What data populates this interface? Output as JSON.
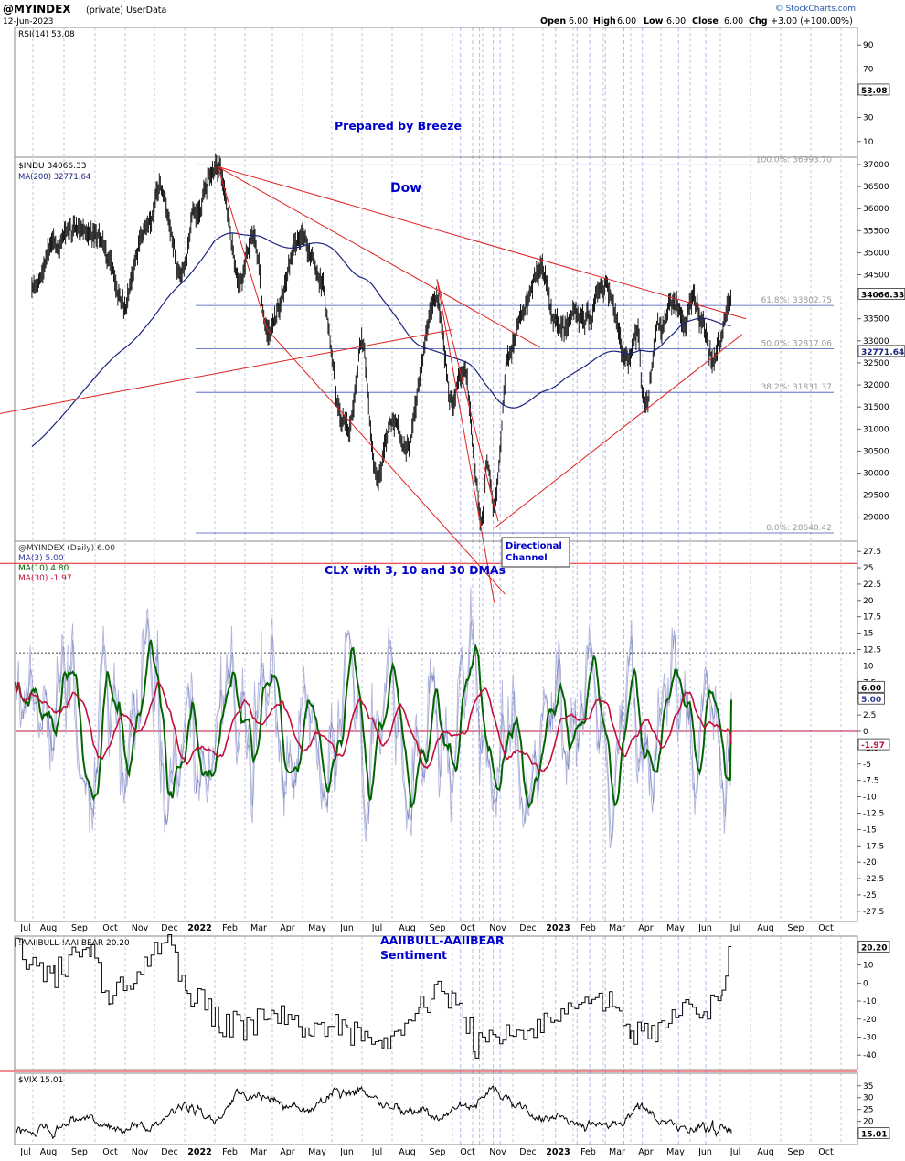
{
  "header": {
    "symbol": "@MYINDEX",
    "privacy": "(private)",
    "source": "UserData",
    "date": "12-Jun-2023",
    "quote": {
      "open_label": "Open",
      "open": "6.00",
      "high_label": "High",
      "high": "6.00",
      "low_label": "Low",
      "low": "6.00",
      "close_label": "Close",
      "close": "6.00",
      "chg_label": "Chg",
      "chg": "+3.00 (+100.00%)"
    },
    "brand": "© StockCharts.com",
    "brand_color": "#2255aa"
  },
  "colors": {
    "blue_text": "#0000cc",
    "price": "#000000",
    "ma200": "#1a237e",
    "trend": "#e02020",
    "fib": "#2233aa",
    "ma3": "#2d3a9a",
    "ma10": "#006400",
    "ma30": "#c0103a",
    "raw": "#b0b4dc",
    "month_line": "#b8b8d8",
    "event_line": "#6a6ad8"
  },
  "annotations": {
    "prepared": "Prepared by Breeze",
    "dow": "Dow",
    "clx": "CLX with 3, 10 and 30 DMAs",
    "channel_box": [
      "Directional",
      "Channel"
    ],
    "sentiment": [
      "AAIIBULL-AAIIBEAR",
      "Sentiment"
    ]
  },
  "x_axis": {
    "labels": [
      "Jul",
      "Aug",
      "Sep",
      "Oct",
      "Nov",
      "Dec",
      "2022",
      "Feb",
      "Mar",
      "Apr",
      "May",
      "Jun",
      "Jul",
      "Aug",
      "Sep",
      "Oct",
      "Nov",
      "Dec",
      "2023",
      "Feb",
      "Mar",
      "Apr",
      "May",
      "Jun",
      "Jul",
      "Aug",
      "Sep",
      "Oct"
    ],
    "bold": [
      "2022",
      "2023"
    ]
  },
  "chart_data": [
    {
      "type": "line",
      "name": "rsi",
      "legend": [
        "RSI(14) 53.08"
      ],
      "ticks": [
        90,
        70,
        50,
        30,
        10
      ],
      "ylim": [
        0,
        100
      ],
      "last_value_tag": "53.08",
      "last_value": 53.08
    },
    {
      "type": "line",
      "name": "dow",
      "legend": [
        "$INDU 34066.33",
        "MA(200) 32771.64"
      ],
      "ticks": [
        37000,
        36500,
        36000,
        35500,
        35000,
        34500,
        34000,
        33500,
        33000,
        32500,
        32000,
        31500,
        31000,
        30500,
        30000,
        29500,
        29000
      ],
      "ylim": [
        28620,
        37000
      ],
      "last_value_tags": [
        "34066.33",
        "32771.64"
      ],
      "fib_levels": [
        {
          "label": "100.0%: 36993.70",
          "value": 36993.7
        },
        {
          "label": "61.8%: 33802.75",
          "value": 33802.75
        },
        {
          "label": "50.0%: 32817.06",
          "value": 32817.06
        },
        {
          "label": "38.2%: 31831.37",
          "value": 31831.37
        },
        {
          "label": "0.0%: 28640.42",
          "value": 28640.42
        }
      ],
      "price_x": [
        "2021-06-29",
        "2021-07-20",
        "2021-08-16",
        "2021-09-03",
        "2021-09-30",
        "2021-10-25",
        "2021-11-05",
        "2021-11-30",
        "2021-12-10",
        "2022-01-04",
        "2022-01-27",
        "2022-02-09",
        "2022-02-24",
        "2022-03-29",
        "2022-04-20",
        "2022-05-12",
        "2022-05-18",
        "2022-06-01",
        "2022-06-16",
        "2022-06-28",
        "2022-07-14",
        "2022-08-16",
        "2022-08-31",
        "2022-09-12",
        "2022-09-30",
        "2022-10-06",
        "2022-10-13",
        "2022-10-28",
        "2022-11-10",
        "2022-12-01",
        "2022-12-14",
        "2022-12-22",
        "2023-01-06",
        "2023-01-19",
        "2023-01-27",
        "2023-02-02",
        "2023-02-24",
        "2023-03-08",
        "2023-03-13",
        "2023-03-16",
        "2023-03-30",
        "2023-04-13",
        "2023-04-26",
        "2023-05-01",
        "2023-05-25",
        "2023-05-31",
        "2023-06-12"
      ],
      "price_y": [
        34300,
        35000,
        35600,
        35300,
        33900,
        35700,
        36400,
        34400,
        35900,
        36900,
        34200,
        35500,
        33300,
        35200,
        34300,
        31400,
        31200,
        33000,
        29900,
        31300,
        30600,
        34000,
        31700,
        32300,
        29000,
        30300,
        29400,
        32800,
        33700,
        34700,
        33300,
        33200,
        33700,
        33400,
        34100,
        34200,
        32800,
        33200,
        31800,
        31600,
        33200,
        33900,
        33300,
        34100,
        32600,
        32900,
        34066
      ]
    },
    {
      "type": "line",
      "name": "clx",
      "legend": [
        "@MYINDEX (Daily) 6.00",
        "MA(3) 5.00",
        "MA(10) 4.80",
        "MA(30) -1.97"
      ],
      "ticks": [
        27.5,
        25,
        22.5,
        20,
        17.5,
        15,
        12.5,
        10,
        7.5,
        5,
        2.5,
        0,
        -2.5,
        -5,
        -7.5,
        -10,
        -12.5,
        -15,
        -17.5,
        -20,
        -22.5,
        -25,
        -27.5
      ],
      "ylim": [
        -28.5,
        28.5
      ],
      "last_value_tags": [
        "6.00",
        "5.00",
        "-1.97"
      ],
      "overbought_line": 12
    },
    {
      "type": "line",
      "name": "aaii",
      "legend": [
        "!AAIIBULL-!AAIIBEAR 20.20"
      ],
      "ticks": [
        10,
        0,
        -10,
        -20,
        -30,
        -40
      ],
      "ylim": [
        -46,
        23
      ],
      "last_value_tag": "20.20",
      "last_value": 20.2
    },
    {
      "type": "line",
      "name": "vix",
      "legend": [
        "$VIX 15.01"
      ],
      "ticks": [
        35,
        30,
        25,
        20,
        15
      ],
      "ylim": [
        11,
        38
      ],
      "last_value_tag": "15.01",
      "last_value": 15.01
    }
  ]
}
